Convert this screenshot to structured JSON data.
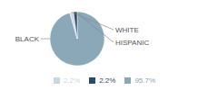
{
  "chart_data": {
    "type": "pie",
    "categories": [
      "BLACK",
      "WHITE",
      "HISPANIC"
    ],
    "values": [
      95.7,
      2.2,
      2.2
    ],
    "value_labels": [
      "95.7%",
      "2.2%",
      "2.2%"
    ],
    "colors": [
      "#8aa8b8",
      "#c8d8e2",
      "#2b4a6b"
    ],
    "legend": "bottom"
  }
}
